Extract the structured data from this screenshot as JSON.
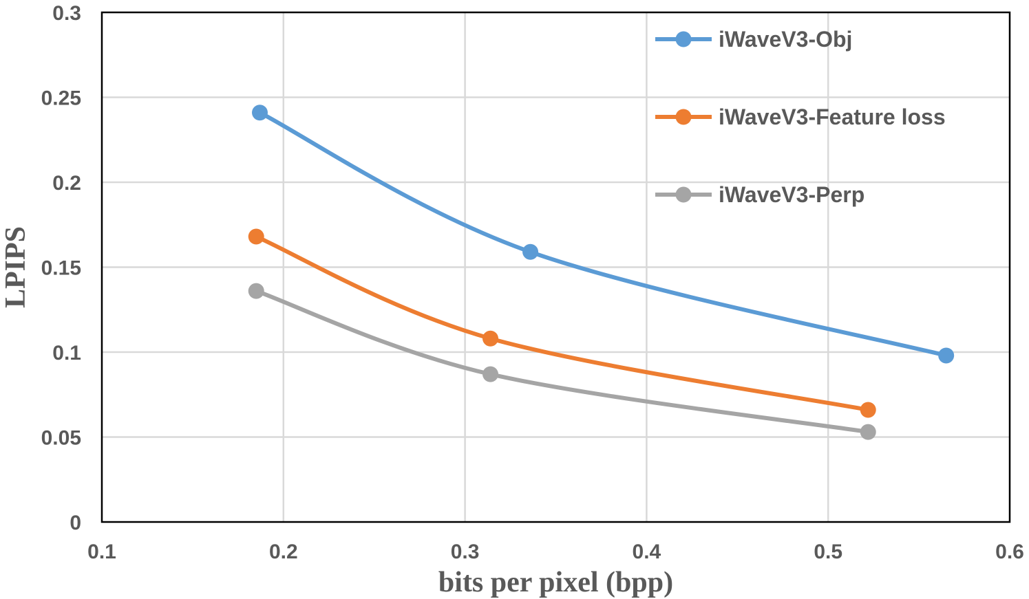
{
  "chart_data": {
    "type": "line",
    "xlabel": "bits per pixel (bpp)",
    "ylabel": "LPIPS",
    "xlim": [
      0.1,
      0.6
    ],
    "ylim": [
      0,
      0.3
    ],
    "xticks": [
      0.1,
      0.2,
      0.3,
      0.4,
      0.5,
      0.6
    ],
    "yticks": [
      0,
      0.05,
      0.1,
      0.15,
      0.2,
      0.25,
      0.3
    ],
    "xtick_labels": [
      "0.1",
      "0.2",
      "0.3",
      "0.4",
      "0.5",
      "0.6"
    ],
    "ytick_labels": [
      "0",
      "0.05",
      "0.1",
      "0.15",
      "0.2",
      "0.25",
      "0.3"
    ],
    "grid": true,
    "smooth": true,
    "legend_position": "top-right",
    "series": [
      {
        "name": "iWaveV3-Obj",
        "color": "#5b9bd5",
        "x": [
          0.187,
          0.336,
          0.565
        ],
        "y": [
          0.241,
          0.159,
          0.098
        ]
      },
      {
        "name": "iWaveV3-Feature loss",
        "color": "#ed7d31",
        "x": [
          0.185,
          0.314,
          0.522
        ],
        "y": [
          0.168,
          0.108,
          0.066
        ]
      },
      {
        "name": "iWaveV3-Perp",
        "color": "#a5a5a5",
        "x": [
          0.185,
          0.314,
          0.522
        ],
        "y": [
          0.136,
          0.087,
          0.053
        ]
      }
    ]
  }
}
